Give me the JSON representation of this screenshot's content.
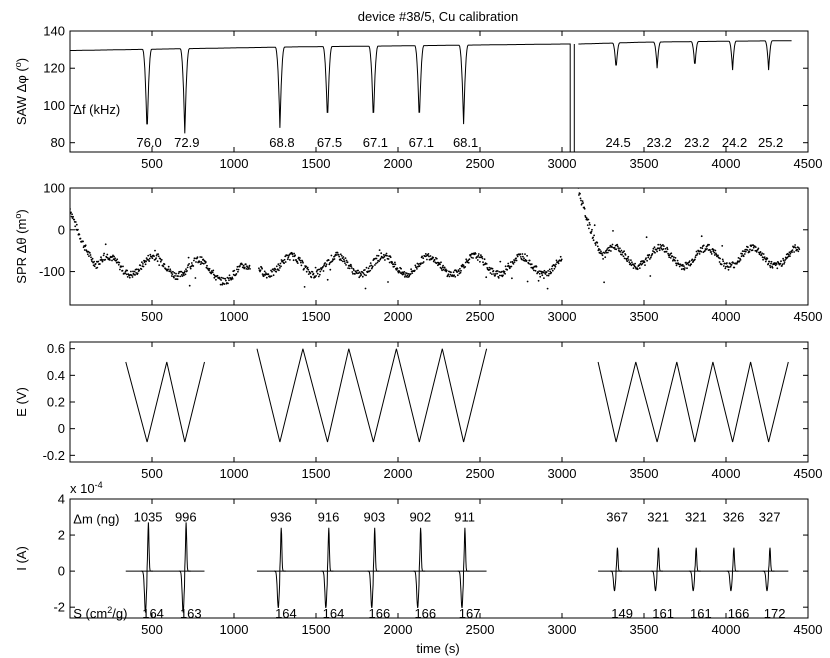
{
  "chart_data": {
    "title": "device #38/5, Cu calibration",
    "xlabel": "time (s)",
    "xlim": [
      0,
      4500
    ],
    "xticks": [
      500,
      1000,
      1500,
      2000,
      2500,
      3000,
      3500,
      4000,
      4500
    ],
    "panels": [
      {
        "type": "line",
        "ylabel": "SAW Δφ (°)",
        "ylim": [
          75,
          140
        ],
        "yticks": [
          80,
          100,
          120,
          140
        ],
        "baseline_segments": [
          {
            "x": [
              0,
              700,
              1400,
              2000,
              2500,
              3000
            ],
            "y": [
              129.5,
              130.5,
              131.5,
              132,
              132.5,
              133
            ]
          },
          {
            "x": [
              3100,
              3500,
              4000,
              4400
            ],
            "y": [
              133,
              134,
              134.5,
              134.8
            ]
          }
        ],
        "dips": [
          {
            "x": 470,
            "depth": 76.0,
            "label": "76.0",
            "low": 83
          },
          {
            "x": 700,
            "depth": 72.9,
            "label": "72.9",
            "low": 85
          },
          {
            "x": 1280,
            "depth": 68.8,
            "label": "68.8",
            "low": 88
          },
          {
            "x": 1570,
            "depth": 67.5,
            "label": "67.5",
            "low": 90
          },
          {
            "x": 1850,
            "depth": 67.1,
            "label": "67.1",
            "low": 90
          },
          {
            "x": 2130,
            "depth": 67.1,
            "label": "67.1",
            "low": 90
          },
          {
            "x": 2400,
            "depth": 68.1,
            "label": "68.1",
            "low": 90
          },
          {
            "x": 3330,
            "depth": 24.5,
            "label": "24.5",
            "low": 119
          },
          {
            "x": 3580,
            "depth": 23.2,
            "label": "23.2",
            "low": 120
          },
          {
            "x": 3810,
            "depth": 23.2,
            "label": "23.2",
            "low": 120
          },
          {
            "x": 4040,
            "depth": 24.2,
            "label": "24.2",
            "low": 119
          },
          {
            "x": 4260,
            "depth": 25.2,
            "label": "25.2",
            "low": 119
          }
        ],
        "drop_at": 3050,
        "annotation": "Δf (kHz)"
      },
      {
        "type": "scatter",
        "ylabel": "SPR Δθ (m°)",
        "ylim": [
          -180,
          100
        ],
        "yticks": [
          -100,
          0,
          100
        ],
        "segments": [
          {
            "x_start": 0,
            "x_end": 3000,
            "start_value": 50,
            "decay_end": 160,
            "level": -85,
            "gap": [
              1100,
              1150
            ]
          },
          {
            "x_start": 3100,
            "x_end": 4450,
            "start_value": 95,
            "decay_end": 3250,
            "level": -65
          }
        ],
        "osc_amplitude": 22,
        "osc_period": 280
      },
      {
        "type": "line",
        "ylabel": "E (V)",
        "ylim": [
          -0.25,
          0.65
        ],
        "yticks": [
          -0.2,
          0,
          0.2,
          0.4,
          0.6
        ],
        "segments": [
          {
            "x": [
              340,
              470,
              590,
              700,
              820
            ],
            "y": [
              0.5,
              -0.1,
              0.5,
              -0.1,
              0.5
            ]
          },
          {
            "x": [
              1140,
              1280,
              1420,
              1570,
              1700,
              1850,
              1990,
              2130,
              2270,
              2400,
              2540
            ],
            "y": [
              0.6,
              -0.1,
              0.6,
              -0.1,
              0.6,
              -0.1,
              0.6,
              -0.1,
              0.6,
              -0.1,
              0.6
            ]
          },
          {
            "x": [
              3220,
              3330,
              3450,
              3580,
              3700,
              3810,
              3920,
              4040,
              4150,
              4260,
              4380
            ],
            "y": [
              0.5,
              -0.1,
              0.5,
              -0.1,
              0.5,
              -0.1,
              0.5,
              -0.1,
              0.5,
              -0.1,
              0.5
            ]
          }
        ]
      },
      {
        "type": "line",
        "ylabel": "I (A)",
        "ylim": [
          -2.6,
          4.0
        ],
        "yticks": [
          -2,
          0,
          2,
          4
        ],
        "exponent": "x 10",
        "exponent_power": "-4",
        "segments": [
          [
            340,
            820
          ],
          [
            1140,
            2540
          ],
          [
            3220,
            4380
          ]
        ],
        "peaks": [
          {
            "x": 470,
            "amp": 2.7,
            "dm": "1035",
            "s": "164"
          },
          {
            "x": 700,
            "amp": 2.7,
            "dm": "996",
            "s": "163"
          },
          {
            "x": 1280,
            "amp": 2.4,
            "dm": "936",
            "s": "164"
          },
          {
            "x": 1570,
            "amp": 2.4,
            "dm": "916",
            "s": "164"
          },
          {
            "x": 1850,
            "amp": 2.4,
            "dm": "903",
            "s": "166"
          },
          {
            "x": 2130,
            "amp": 2.4,
            "dm": "902",
            "s": "166"
          },
          {
            "x": 2400,
            "amp": 2.4,
            "dm": "911",
            "s": "167"
          },
          {
            "x": 3330,
            "amp": 1.3,
            "dm": "367",
            "s": "149"
          },
          {
            "x": 3580,
            "amp": 1.3,
            "dm": "321",
            "s": "161"
          },
          {
            "x": 3810,
            "amp": 1.3,
            "dm": "321",
            "s": "161"
          },
          {
            "x": 4040,
            "amp": 1.3,
            "dm": "326",
            "s": "166"
          },
          {
            "x": 4260,
            "amp": 1.3,
            "dm": "327",
            "s": "172"
          }
        ],
        "annotation_top": "Δm (ng)",
        "annotation_bottom_prefix": "S (cm",
        "annotation_bottom_sup": "2",
        "annotation_bottom_suffix": "/g)"
      }
    ]
  }
}
